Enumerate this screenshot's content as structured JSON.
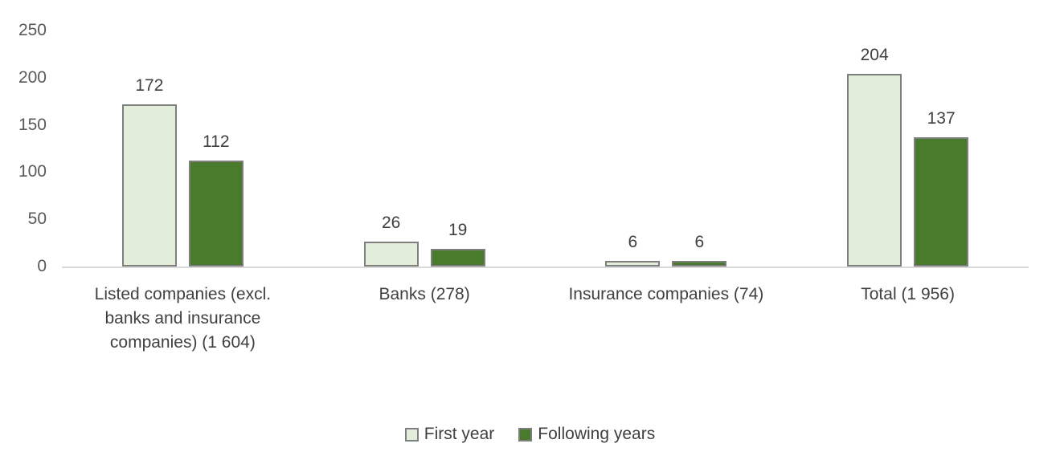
{
  "chart_data": {
    "type": "bar",
    "title": "",
    "categories": [
      "Listed companies (excl. banks and insurance companies) (1 604)",
      "Banks (278)",
      "Insurance companies (74)",
      "Total (1 956)"
    ],
    "series": [
      {
        "name": "First year",
        "values": [
          172,
          26,
          6,
          204
        ],
        "fill": "#e3eeda",
        "border": "#7f7f7f"
      },
      {
        "name": "Following years",
        "values": [
          112,
          19,
          6,
          137
        ],
        "fill": "#4a7b2c",
        "border": "#7f7f7f"
      }
    ],
    "y_ticks": [
      0,
      50,
      100,
      150,
      200,
      250
    ],
    "ylim": [
      0,
      250
    ],
    "grid": false,
    "legend_position": "bottom",
    "axis_line_color": "#d9d9d9",
    "tick_text_color": "#595959",
    "label_text_color": "#404040"
  }
}
